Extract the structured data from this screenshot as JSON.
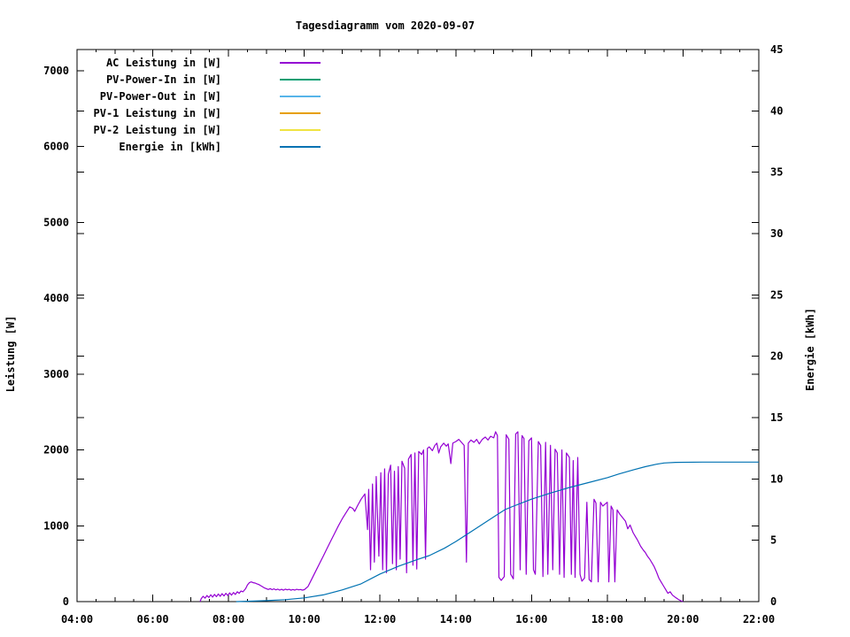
{
  "page": {
    "background_color": "#ffffff",
    "text_color": "#000000"
  },
  "chart_data": {
    "type": "line",
    "title": "Tagesdiagramm vom 2020-09-07",
    "grid": false,
    "legend_position": "top-left-inside",
    "x_axis": {
      "min_hour": 4,
      "max_hour": 22,
      "labeled_ticks": [
        {
          "hour": 4,
          "label": "04:00"
        },
        {
          "hour": 6,
          "label": "06:00"
        },
        {
          "hour": 8,
          "label": "08:00"
        },
        {
          "hour": 10,
          "label": "10:00"
        },
        {
          "hour": 12,
          "label": "12:00"
        },
        {
          "hour": 14,
          "label": "14:00"
        },
        {
          "hour": 16,
          "label": "16:00"
        },
        {
          "hour": 18,
          "label": "18:00"
        },
        {
          "hour": 20,
          "label": "20:00"
        },
        {
          "hour": 22,
          "label": "22:00"
        }
      ],
      "hour_tick_every": 1,
      "minor_tick_every": 0.5
    },
    "y_left_axis": {
      "label": "Leistung [W]",
      "min": 0,
      "max": 7280,
      "tick_values": [
        0,
        1000,
        2000,
        3000,
        4000,
        5000,
        6000,
        7000
      ]
    },
    "y_right_axis": {
      "label": "Energie [kWh]",
      "min": 0,
      "max": 45,
      "tick_values": [
        0,
        5,
        10,
        15,
        20,
        25,
        30,
        35,
        40,
        45
      ]
    },
    "series": [
      {
        "name": "AC Leistung in [W]",
        "color": "#9400d3",
        "axis": "left",
        "visible": true,
        "points": [
          [
            7.25,
            0
          ],
          [
            7.28,
            40
          ],
          [
            7.33,
            70
          ],
          [
            7.38,
            45
          ],
          [
            7.43,
            80
          ],
          [
            7.48,
            55
          ],
          [
            7.53,
            90
          ],
          [
            7.58,
            60
          ],
          [
            7.63,
            95
          ],
          [
            7.68,
            65
          ],
          [
            7.73,
            100
          ],
          [
            7.78,
            70
          ],
          [
            7.83,
            105
          ],
          [
            7.88,
            75
          ],
          [
            7.93,
            110
          ],
          [
            7.98,
            80
          ],
          [
            8.03,
            115
          ],
          [
            8.08,
            85
          ],
          [
            8.13,
            120
          ],
          [
            8.18,
            95
          ],
          [
            8.23,
            130
          ],
          [
            8.28,
            110
          ],
          [
            8.33,
            140
          ],
          [
            8.38,
            130
          ],
          [
            8.45,
            170
          ],
          [
            8.5,
            220
          ],
          [
            8.55,
            250
          ],
          [
            8.6,
            260
          ],
          [
            8.65,
            250
          ],
          [
            8.7,
            245
          ],
          [
            8.75,
            235
          ],
          [
            8.8,
            225
          ],
          [
            8.85,
            210
          ],
          [
            8.9,
            195
          ],
          [
            8.95,
            180
          ],
          [
            9,
            170
          ],
          [
            9.05,
            160
          ],
          [
            9.1,
            172
          ],
          [
            9.15,
            158
          ],
          [
            9.2,
            168
          ],
          [
            9.25,
            155
          ],
          [
            9.3,
            165
          ],
          [
            9.35,
            152
          ],
          [
            9.4,
            162
          ],
          [
            9.45,
            150
          ],
          [
            9.5,
            165
          ],
          [
            9.55,
            155
          ],
          [
            9.6,
            162
          ],
          [
            9.65,
            150
          ],
          [
            9.7,
            160
          ],
          [
            9.75,
            152
          ],
          [
            9.8,
            162
          ],
          [
            9.85,
            155
          ],
          [
            9.9,
            160
          ],
          [
            9.95,
            152
          ],
          [
            10,
            158
          ],
          [
            10.1,
            200
          ],
          [
            10.2,
            300
          ],
          [
            10.3,
            400
          ],
          [
            10.4,
            500
          ],
          [
            10.5,
            600
          ],
          [
            10.6,
            700
          ],
          [
            10.7,
            800
          ],
          [
            10.8,
            900
          ],
          [
            10.9,
            1000
          ],
          [
            11,
            1090
          ],
          [
            11.1,
            1170
          ],
          [
            11.2,
            1250
          ],
          [
            11.28,
            1230
          ],
          [
            11.33,
            1190
          ],
          [
            11.4,
            1260
          ],
          [
            11.5,
            1350
          ],
          [
            11.6,
            1420
          ],
          [
            11.67,
            950
          ],
          [
            11.7,
            1480
          ],
          [
            11.75,
            420
          ],
          [
            11.8,
            1550
          ],
          [
            11.85,
            520
          ],
          [
            11.9,
            1650
          ],
          [
            11.97,
            600
          ],
          [
            12.02,
            1700
          ],
          [
            12.07,
            420
          ],
          [
            12.12,
            1750
          ],
          [
            12.17,
            380
          ],
          [
            12.22,
            1680
          ],
          [
            12.28,
            1800
          ],
          [
            12.33,
            500
          ],
          [
            12.38,
            1720
          ],
          [
            12.43,
            420
          ],
          [
            12.48,
            1780
          ],
          [
            12.53,
            560
          ],
          [
            12.58,
            1850
          ],
          [
            12.65,
            1760
          ],
          [
            12.7,
            380
          ],
          [
            12.75,
            1880
          ],
          [
            12.82,
            1940
          ],
          [
            12.87,
            480
          ],
          [
            12.92,
            1960
          ],
          [
            12.97,
            430
          ],
          [
            13.02,
            1980
          ],
          [
            13.1,
            1940
          ],
          [
            13.15,
            2000
          ],
          [
            13.2,
            560
          ],
          [
            13.25,
            2020
          ],
          [
            13.3,
            2040
          ],
          [
            13.38,
            1990
          ],
          [
            13.45,
            2060
          ],
          [
            13.5,
            2090
          ],
          [
            13.55,
            1960
          ],
          [
            13.6,
            2040
          ],
          [
            13.68,
            2090
          ],
          [
            13.75,
            2050
          ],
          [
            13.8,
            2080
          ],
          [
            13.87,
            1820
          ],
          [
            13.92,
            2090
          ],
          [
            14,
            2110
          ],
          [
            14.08,
            2140
          ],
          [
            14.15,
            2100
          ],
          [
            14.22,
            2060
          ],
          [
            14.28,
            520
          ],
          [
            14.33,
            2090
          ],
          [
            14.4,
            2130
          ],
          [
            14.48,
            2100
          ],
          [
            14.55,
            2140
          ],
          [
            14.62,
            2080
          ],
          [
            14.7,
            2140
          ],
          [
            14.78,
            2170
          ],
          [
            14.85,
            2130
          ],
          [
            14.92,
            2180
          ],
          [
            15,
            2160
          ],
          [
            15.05,
            2240
          ],
          [
            15.1,
            2190
          ],
          [
            15.14,
            320
          ],
          [
            15.2,
            280
          ],
          [
            15.28,
            330
          ],
          [
            15.33,
            2200
          ],
          [
            15.4,
            2140
          ],
          [
            15.45,
            360
          ],
          [
            15.52,
            300
          ],
          [
            15.58,
            2210
          ],
          [
            15.64,
            2240
          ],
          [
            15.7,
            420
          ],
          [
            15.75,
            2190
          ],
          [
            15.8,
            2150
          ],
          [
            15.86,
            360
          ],
          [
            15.93,
            2120
          ],
          [
            16,
            2160
          ],
          [
            16.05,
            420
          ],
          [
            16.1,
            360
          ],
          [
            16.18,
            2110
          ],
          [
            16.24,
            2060
          ],
          [
            16.3,
            330
          ],
          [
            16.37,
            2100
          ],
          [
            16.43,
            360
          ],
          [
            16.5,
            2060
          ],
          [
            16.56,
            420
          ],
          [
            16.62,
            2010
          ],
          [
            16.68,
            1960
          ],
          [
            16.74,
            360
          ],
          [
            16.8,
            2000
          ],
          [
            16.86,
            320
          ],
          [
            16.92,
            1960
          ],
          [
            17,
            1900
          ],
          [
            17.05,
            360
          ],
          [
            17.1,
            1860
          ],
          [
            17.15,
            320
          ],
          [
            17.22,
            1900
          ],
          [
            17.28,
            360
          ],
          [
            17.33,
            270
          ],
          [
            17.4,
            310
          ],
          [
            17.46,
            1310
          ],
          [
            17.52,
            290
          ],
          [
            17.58,
            260
          ],
          [
            17.65,
            1350
          ],
          [
            17.7,
            1300
          ],
          [
            17.76,
            260
          ],
          [
            17.82,
            1310
          ],
          [
            17.88,
            1260
          ],
          [
            17.95,
            1290
          ],
          [
            18,
            1310
          ],
          [
            18.04,
            260
          ],
          [
            18.1,
            1260
          ],
          [
            18.15,
            1210
          ],
          [
            18.2,
            260
          ],
          [
            18.26,
            1210
          ],
          [
            18.32,
            1160
          ],
          [
            18.4,
            1110
          ],
          [
            18.48,
            1060
          ],
          [
            18.54,
            960
          ],
          [
            18.6,
            1010
          ],
          [
            18.68,
            910
          ],
          [
            18.74,
            860
          ],
          [
            18.8,
            810
          ],
          [
            18.88,
            730
          ],
          [
            18.95,
            680
          ],
          [
            19,
            650
          ],
          [
            19.06,
            600
          ],
          [
            19.12,
            560
          ],
          [
            19.18,
            510
          ],
          [
            19.24,
            460
          ],
          [
            19.3,
            390
          ],
          [
            19.36,
            310
          ],
          [
            19.42,
            260
          ],
          [
            19.48,
            210
          ],
          [
            19.54,
            160
          ],
          [
            19.6,
            110
          ],
          [
            19.66,
            130
          ],
          [
            19.72,
            85
          ],
          [
            19.8,
            55
          ],
          [
            19.87,
            30
          ],
          [
            19.94,
            12
          ],
          [
            20,
            0
          ]
        ]
      },
      {
        "name": "PV-Power-In in [W]",
        "color": "#009e73",
        "axis": "left",
        "visible": false,
        "points": []
      },
      {
        "name": "PV-Power-Out in [W]",
        "color": "#56b4e9",
        "axis": "left",
        "visible": false,
        "points": []
      },
      {
        "name": "PV-1 Leistung in [W]",
        "color": "#e69f00",
        "axis": "left",
        "visible": false,
        "points": []
      },
      {
        "name": "PV-2 Leistung in [W]",
        "color": "#f0e442",
        "axis": "left",
        "visible": false,
        "points": []
      },
      {
        "name": "Energie in [kWh]",
        "color": "#0072b2",
        "axis": "right",
        "visible": true,
        "points": [
          [
            8.2,
            0
          ],
          [
            8.5,
            0.03
          ],
          [
            9,
            0.08
          ],
          [
            9.5,
            0.16
          ],
          [
            10,
            0.3
          ],
          [
            10.5,
            0.55
          ],
          [
            11,
            0.95
          ],
          [
            11.5,
            1.45
          ],
          [
            12,
            2.25
          ],
          [
            12.5,
            2.9
          ],
          [
            13,
            3.45
          ],
          [
            13.3,
            3.75
          ],
          [
            13.7,
            4.35
          ],
          [
            14,
            4.9
          ],
          [
            14.5,
            5.9
          ],
          [
            15,
            6.9
          ],
          [
            15.3,
            7.5
          ],
          [
            15.5,
            7.75
          ],
          [
            16,
            8.35
          ],
          [
            16.5,
            8.85
          ],
          [
            17,
            9.3
          ],
          [
            17.5,
            9.7
          ],
          [
            18,
            10.1
          ],
          [
            18.3,
            10.4
          ],
          [
            18.7,
            10.75
          ],
          [
            19,
            11.0
          ],
          [
            19.3,
            11.2
          ],
          [
            19.5,
            11.3
          ],
          [
            19.8,
            11.35
          ],
          [
            20.5,
            11.37
          ],
          [
            22,
            11.37
          ]
        ]
      }
    ]
  }
}
